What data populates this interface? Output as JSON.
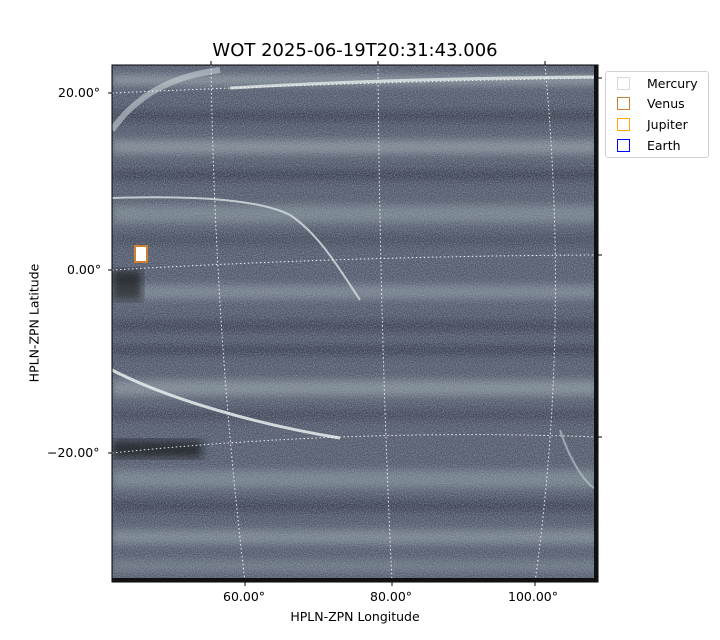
{
  "chart_data": {
    "type": "heatmap",
    "title": "WOT 2025-06-19T20:31:43.006",
    "xlabel": "HPLN-ZPN Longitude",
    "ylabel": "HPLN-ZPN Latitude",
    "x_ticks": [
      "60.00°",
      "80.00°",
      "100.00°"
    ],
    "y_ticks": [
      "20.00°",
      "0.00°",
      "−20.00°"
    ],
    "grid": true,
    "colormap": "bone",
    "legend_position": "outside-top-right",
    "legend": [
      {
        "name": "Mercury",
        "color": "#d9d9d9"
      },
      {
        "name": "Venus",
        "color": "#cd7f32"
      },
      {
        "name": "Jupiter",
        "color": "#ffa500"
      },
      {
        "name": "Earth",
        "color": "#0000ff"
      }
    ],
    "markers": [
      {
        "name": "Venus",
        "color": "#cd7f32",
        "lon": 45,
        "lat": 2
      }
    ]
  }
}
